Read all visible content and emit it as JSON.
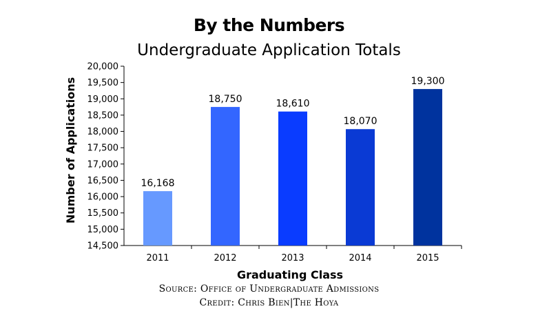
{
  "chart_data": {
    "type": "bar",
    "title": "By the Numbers",
    "subtitle": "Undergraduate Application Totals",
    "xlabel": "Graduating Class",
    "ylabel": "Number of Applications",
    "categories": [
      "2011",
      "2012",
      "2013",
      "2014",
      "2015"
    ],
    "values": [
      16168,
      18750,
      18610,
      18070,
      19300
    ],
    "value_labels": [
      "16,168",
      "18,750",
      "18,610",
      "18,070",
      "19,300"
    ],
    "bar_colors": [
      "#6699ff",
      "#3366ff",
      "#0a3cff",
      "#0a3ad4",
      "#00339e"
    ],
    "ylim": [
      14500,
      20000
    ],
    "yticks": [
      "14,500",
      "15,000",
      "15,500",
      "16,000",
      "16,500",
      "17,000",
      "17,500",
      "18,000",
      "18,500",
      "19,000",
      "19,500",
      "20,000"
    ],
    "ytick_values": [
      14500,
      15000,
      15500,
      16000,
      16500,
      17000,
      17500,
      18000,
      18500,
      19000,
      19500,
      20000
    ],
    "grid": false,
    "legend": "none"
  },
  "footer": {
    "source": "Source: Office of Undergraduate Admissions",
    "credit": "Credit: Chris Bien|The Hoya"
  }
}
